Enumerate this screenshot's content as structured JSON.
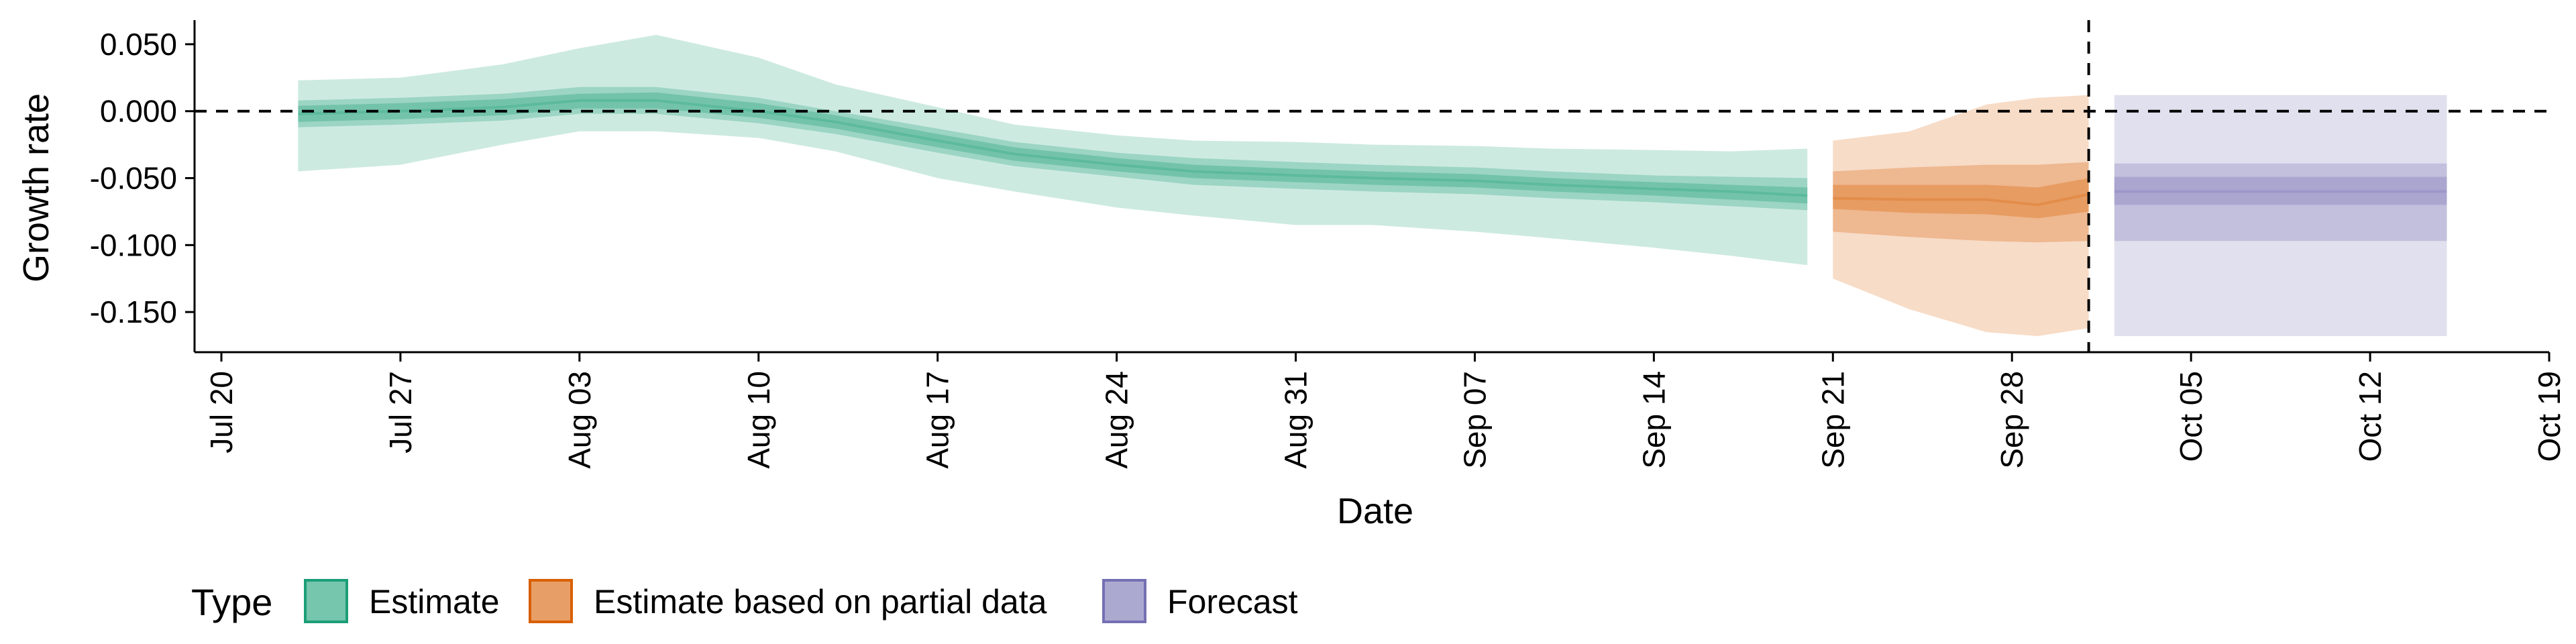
{
  "chart_data": {
    "type": "area",
    "xlabel": "Date",
    "ylabel": "Growth rate",
    "xlim": [
      "2020-07-20",
      "2020-10-19"
    ],
    "ylim": [
      -0.18,
      0.068
    ],
    "y_ticks": [
      0.05,
      0.0,
      -0.05,
      -0.1,
      -0.15
    ],
    "y_tick_labels": [
      "0.050",
      "0.000",
      "-0.050",
      "-0.100",
      "-0.150"
    ],
    "x_ticks": [
      "2020-07-20",
      "2020-07-27",
      "2020-08-03",
      "2020-08-10",
      "2020-08-17",
      "2020-08-24",
      "2020-08-31",
      "2020-09-07",
      "2020-09-14",
      "2020-09-21",
      "2020-09-28",
      "2020-10-05",
      "2020-10-12",
      "2020-10-19"
    ],
    "x_tick_labels": [
      "Jul 20",
      "Jul 27",
      "Aug 03",
      "Aug 10",
      "Aug 17",
      "Aug 24",
      "Aug 31",
      "Sep 07",
      "Sep 14",
      "Sep 21",
      "Sep 28",
      "Oct 05",
      "Oct 12",
      "Oct 19"
    ],
    "reference_lines": {
      "horizontal_y": 0.0,
      "vertical_date": "2020-10-01"
    },
    "grid": false,
    "legend": {
      "title": "Type",
      "position": "bottom-left",
      "entries": [
        {
          "label": "Estimate",
          "color": "#1b9e77"
        },
        {
          "label": "Estimate based on partial data",
          "color": "#d95f02"
        },
        {
          "label": "Forecast",
          "color": "#7570b3"
        }
      ]
    },
    "series": [
      {
        "type_label": "Estimate",
        "color": "#1b9e77",
        "points": [
          {
            "date": "2020-07-23",
            "median": -0.002,
            "inner": [
              -0.008,
              0.004
            ],
            "mid": [
              -0.012,
              0.008
            ],
            "outer": [
              -0.045,
              0.023
            ]
          },
          {
            "date": "2020-07-27",
            "median": 0.0,
            "inner": [
              -0.006,
              0.006
            ],
            "mid": [
              -0.01,
              0.01
            ],
            "outer": [
              -0.04,
              0.025
            ]
          },
          {
            "date": "2020-07-31",
            "median": 0.003,
            "inner": [
              -0.003,
              0.009
            ],
            "mid": [
              -0.007,
              0.013
            ],
            "outer": [
              -0.025,
              0.035
            ]
          },
          {
            "date": "2020-08-03",
            "median": 0.008,
            "inner": [
              0.002,
              0.013
            ],
            "mid": [
              -0.002,
              0.018
            ],
            "outer": [
              -0.015,
              0.047
            ]
          },
          {
            "date": "2020-08-06",
            "median": 0.008,
            "inner": [
              0.002,
              0.014
            ],
            "mid": [
              -0.002,
              0.018
            ],
            "outer": [
              -0.015,
              0.057
            ]
          },
          {
            "date": "2020-08-10",
            "median": 0.0,
            "inner": [
              -0.005,
              0.006
            ],
            "mid": [
              -0.009,
              0.01
            ],
            "outer": [
              -0.02,
              0.04
            ]
          },
          {
            "date": "2020-08-13",
            "median": -0.008,
            "inner": [
              -0.013,
              -0.003
            ],
            "mid": [
              -0.017,
              0.0
            ],
            "outer": [
              -0.03,
              0.02
            ]
          },
          {
            "date": "2020-08-17",
            "median": -0.022,
            "inner": [
              -0.027,
              -0.017
            ],
            "mid": [
              -0.031,
              -0.013
            ],
            "outer": [
              -0.05,
              0.003
            ]
          },
          {
            "date": "2020-08-20",
            "median": -0.032,
            "inner": [
              -0.037,
              -0.027
            ],
            "mid": [
              -0.041,
              -0.023
            ],
            "outer": [
              -0.06,
              -0.01
            ]
          },
          {
            "date": "2020-08-24",
            "median": -0.04,
            "inner": [
              -0.045,
              -0.035
            ],
            "mid": [
              -0.049,
              -0.031
            ],
            "outer": [
              -0.072,
              -0.018
            ]
          },
          {
            "date": "2020-08-27",
            "median": -0.045,
            "inner": [
              -0.05,
              -0.04
            ],
            "mid": [
              -0.055,
              -0.035
            ],
            "outer": [
              -0.078,
              -0.022
            ]
          },
          {
            "date": "2020-08-31",
            "median": -0.048,
            "inner": [
              -0.053,
              -0.043
            ],
            "mid": [
              -0.058,
              -0.038
            ],
            "outer": [
              -0.085,
              -0.023
            ]
          },
          {
            "date": "2020-09-03",
            "median": -0.05,
            "inner": [
              -0.055,
              -0.045
            ],
            "mid": [
              -0.06,
              -0.04
            ],
            "outer": [
              -0.085,
              -0.025
            ]
          },
          {
            "date": "2020-09-07",
            "median": -0.052,
            "inner": [
              -0.057,
              -0.047
            ],
            "mid": [
              -0.062,
              -0.042
            ],
            "outer": [
              -0.09,
              -0.026
            ]
          },
          {
            "date": "2020-09-10",
            "median": -0.055,
            "inner": [
              -0.06,
              -0.05
            ],
            "mid": [
              -0.065,
              -0.045
            ],
            "outer": [
              -0.095,
              -0.028
            ]
          },
          {
            "date": "2020-09-14",
            "median": -0.058,
            "inner": [
              -0.063,
              -0.053
            ],
            "mid": [
              -0.068,
              -0.048
            ],
            "outer": [
              -0.102,
              -0.029
            ]
          },
          {
            "date": "2020-09-17",
            "median": -0.06,
            "inner": [
              -0.066,
              -0.055
            ],
            "mid": [
              -0.071,
              -0.049
            ],
            "outer": [
              -0.108,
              -0.03
            ]
          },
          {
            "date": "2020-09-20",
            "median": -0.063,
            "inner": [
              -0.069,
              -0.057
            ],
            "mid": [
              -0.074,
              -0.05
            ],
            "outer": [
              -0.115,
              -0.028
            ]
          }
        ]
      },
      {
        "type_label": "Estimate based on partial data",
        "color": "#d95f02",
        "points": [
          {
            "date": "2020-09-21",
            "median": -0.065,
            "inner": [
              -0.073,
              -0.055
            ],
            "mid": [
              -0.09,
              -0.045
            ],
            "outer": [
              -0.125,
              -0.022
            ]
          },
          {
            "date": "2020-09-24",
            "median": -0.066,
            "inner": [
              -0.076,
              -0.055
            ],
            "mid": [
              -0.094,
              -0.042
            ],
            "outer": [
              -0.148,
              -0.015
            ]
          },
          {
            "date": "2020-09-27",
            "median": -0.066,
            "inner": [
              -0.077,
              -0.055
            ],
            "mid": [
              -0.097,
              -0.04
            ],
            "outer": [
              -0.165,
              0.005
            ]
          },
          {
            "date": "2020-09-29",
            "median": -0.07,
            "inner": [
              -0.08,
              -0.057
            ],
            "mid": [
              -0.098,
              -0.04
            ],
            "outer": [
              -0.168,
              0.01
            ]
          },
          {
            "date": "2020-10-01",
            "median": -0.062,
            "inner": [
              -0.075,
              -0.05
            ],
            "mid": [
              -0.097,
              -0.038
            ],
            "outer": [
              -0.162,
              0.012
            ]
          }
        ]
      },
      {
        "type_label": "Forecast",
        "color": "#7570b3",
        "points": [
          {
            "date": "2020-10-02",
            "median": -0.06,
            "inner": [
              -0.07,
              -0.049
            ],
            "mid": [
              -0.097,
              -0.039
            ],
            "outer": [
              -0.168,
              0.012
            ]
          },
          {
            "date": "2020-10-15",
            "median": -0.06,
            "inner": [
              -0.07,
              -0.049
            ],
            "mid": [
              -0.097,
              -0.039
            ],
            "outer": [
              -0.168,
              0.012
            ]
          }
        ]
      }
    ]
  }
}
